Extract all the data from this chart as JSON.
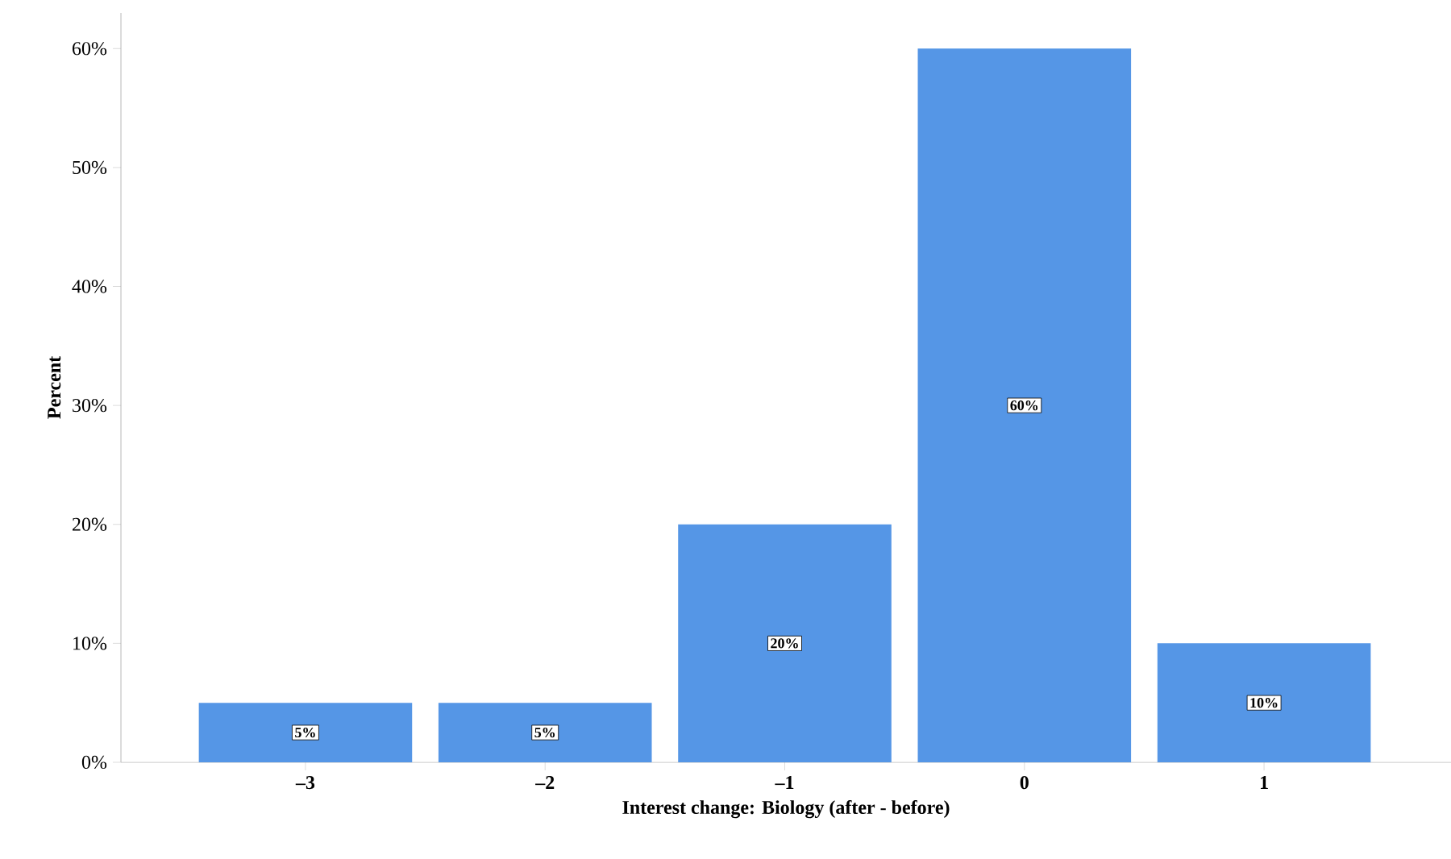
{
  "chart_data": {
    "type": "bar",
    "xlabel": "Interest change: Biology (after - before)",
    "ylabel": "Percent",
    "categories": [
      "–3",
      "–2",
      "–1",
      "0",
      "1"
    ],
    "values": [
      5,
      5,
      20,
      60,
      10
    ],
    "value_labels": [
      "5%",
      "5%",
      "20%",
      "60%",
      "10%"
    ],
    "color": "#5596e6",
    "ylim": [
      0,
      63
    ],
    "yticks": [
      {
        "value": 0,
        "label": "0%"
      },
      {
        "value": 10,
        "label": "10%"
      },
      {
        "value": 20,
        "label": "20%"
      },
      {
        "value": 30,
        "label": "30%"
      },
      {
        "value": 40,
        "label": "40%"
      },
      {
        "value": 50,
        "label": "50%"
      },
      {
        "value": 60,
        "label": "60%"
      }
    ]
  }
}
